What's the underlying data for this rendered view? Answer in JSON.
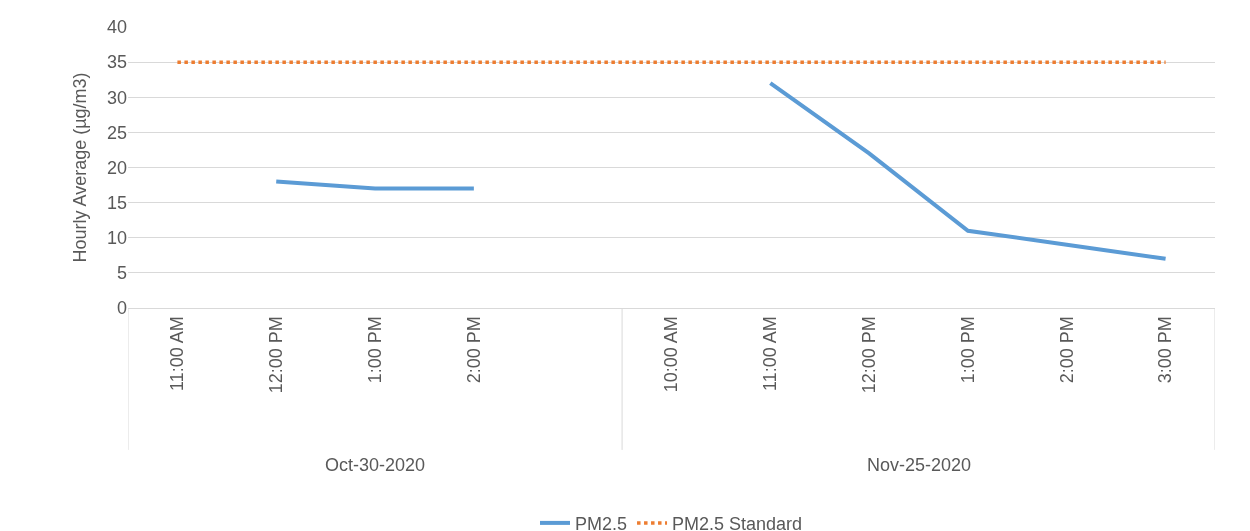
{
  "chart_data": {
    "type": "line",
    "ylabel": "Hourly Average (µg/m3)",
    "categories": [
      "11:00 AM",
      "12:00 PM",
      "1:00 PM",
      "2:00 PM",
      null,
      "10:00 AM",
      "11:00 AM",
      "12:00 PM",
      "1:00 PM",
      "2:00 PM",
      "3:00 PM"
    ],
    "series": [
      {
        "name": "PM2.5",
        "color": "#5b9bd5",
        "line_style": "solid",
        "values": [
          null,
          18,
          17,
          17,
          null,
          null,
          32,
          22,
          11,
          9,
          7
        ]
      },
      {
        "name": "PM2.5 Standard",
        "color": "#ed7d31",
        "line_style": "dotted",
        "values": [
          35,
          35,
          35,
          35,
          35,
          35,
          35,
          35,
          35,
          35,
          35
        ]
      }
    ],
    "annotations": [
      "Oct-30-2020",
      "Nov-25-2020"
    ],
    "ylim": [
      0,
      40
    ],
    "yticks": [
      0,
      5,
      10,
      15,
      20,
      25,
      30,
      35,
      40
    ],
    "grid": "y",
    "legend": "bottom",
    "marker": "none"
  }
}
